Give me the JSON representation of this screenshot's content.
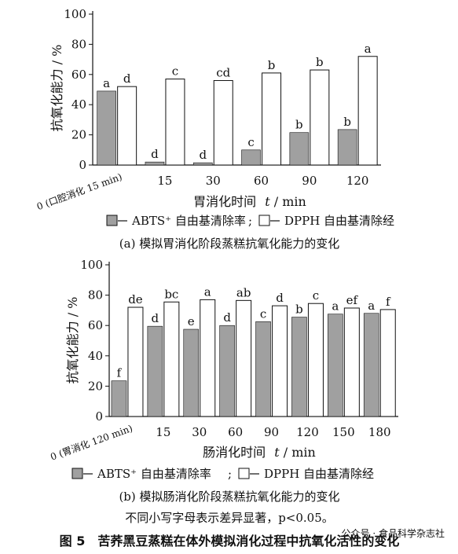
{
  "figure": {
    "note": "不同小写字母表示差异显著，p<0.05。",
    "caption": "图 5　苦荞黑豆蒸糕在体外模拟消化过程中抗氧化活性的变化",
    "watermark": "公众号 · 食品科学杂志社"
  },
  "colors": {
    "abts": "#a0a0a0",
    "dpph": "#ffffff",
    "stroke": "#111111"
  },
  "chart_data": [
    {
      "type": "bar",
      "subtitle": "(a)  模拟胃消化阶段蒸糕抗氧化能力的变化",
      "xlabel_prefix": "胃消化时间",
      "xlabel_var": "t",
      "xlabel_unit": " / min",
      "ylabel": "抗氧化能力 / %",
      "ylim": [
        0,
        100
      ],
      "yticks": [
        0,
        20,
        40,
        60,
        80,
        100
      ],
      "categories": [
        "0 (口腔消化 15 min)",
        "15",
        "30",
        "60",
        "90",
        "120"
      ],
      "series": [
        {
          "name": "ABTS⁺ 自由基清除率",
          "values": [
            49,
            2,
            1.5,
            10,
            21.5,
            23.5
          ],
          "letters": [
            "a",
            "d",
            "d",
            "c",
            "b",
            "b"
          ]
        },
        {
          "name": "DPPH 自由基清除经",
          "values": [
            52,
            57,
            56,
            61,
            63,
            72
          ],
          "letters": [
            "d",
            "c",
            "cd",
            "b",
            "b",
            "a"
          ]
        }
      ],
      "legend": "bottom"
    },
    {
      "type": "bar",
      "subtitle": "(b)  模拟肠消化阶段蒸糕抗氧化能力的变化",
      "xlabel_prefix": "肠消化时间",
      "xlabel_var": "t",
      "xlabel_unit": " / min",
      "ylabel": "抗氧化能力 / %",
      "ylim": [
        0,
        100
      ],
      "yticks": [
        0,
        20,
        40,
        60,
        80,
        100
      ],
      "categories": [
        "0 (胃消化 120 min)",
        "15",
        "30",
        "60",
        "90",
        "120",
        "150",
        "180"
      ],
      "series": [
        {
          "name": "ABTS⁺ 自由基清除率",
          "values": [
            23.5,
            59.5,
            57.5,
            60,
            62.5,
            65.5,
            67.5,
            68
          ],
          "letters": [
            "f",
            "d",
            "e",
            "d",
            "c",
            "b",
            "a",
            "a"
          ]
        },
        {
          "name": "DPPH 自由基清除经",
          "values": [
            72,
            75.5,
            77,
            76.5,
            73,
            74.5,
            71.5,
            70.5
          ],
          "letters": [
            "de",
            "bc",
            "a",
            "ab",
            "d",
            "c",
            "ef",
            "f"
          ]
        }
      ],
      "legend": "bottom"
    }
  ]
}
